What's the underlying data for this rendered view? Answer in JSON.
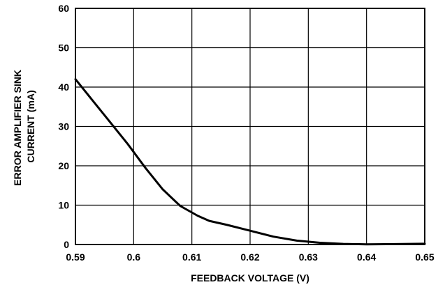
{
  "chart_data": {
    "type": "line",
    "title": "",
    "xlabel": "FEEDBACK VOLTAGE (V)",
    "ylabel_lines": [
      "ERROR AMPLIFIER SINK",
      "CURRENT (mA)"
    ],
    "xlim": [
      0.59,
      0.65
    ],
    "ylim": [
      0,
      60
    ],
    "xticks": [
      0.59,
      0.6,
      0.61,
      0.62,
      0.63,
      0.64,
      0.65
    ],
    "xtick_labels": [
      "0.59",
      "0.6",
      "0.61",
      "0.62",
      "0.63",
      "0.64",
      "0.65"
    ],
    "yticks": [
      0,
      10,
      20,
      30,
      40,
      50,
      60
    ],
    "ytick_labels": [
      "0",
      "10",
      "20",
      "30",
      "40",
      "50",
      "60"
    ],
    "grid": true,
    "legend": "none",
    "series": [
      {
        "color": "#000000",
        "x": [
          0.59,
          0.593,
          0.596,
          0.599,
          0.602,
          0.605,
          0.608,
          0.611,
          0.613,
          0.616,
          0.62,
          0.624,
          0.628,
          0.632,
          0.636,
          0.64,
          0.645,
          0.65
        ],
        "y": [
          42,
          36.5,
          31,
          25.5,
          19.5,
          14,
          9.8,
          7.3,
          6.0,
          5.0,
          3.5,
          2.0,
          1.0,
          0.45,
          0.15,
          0.05,
          0.1,
          0.2
        ]
      }
    ]
  }
}
